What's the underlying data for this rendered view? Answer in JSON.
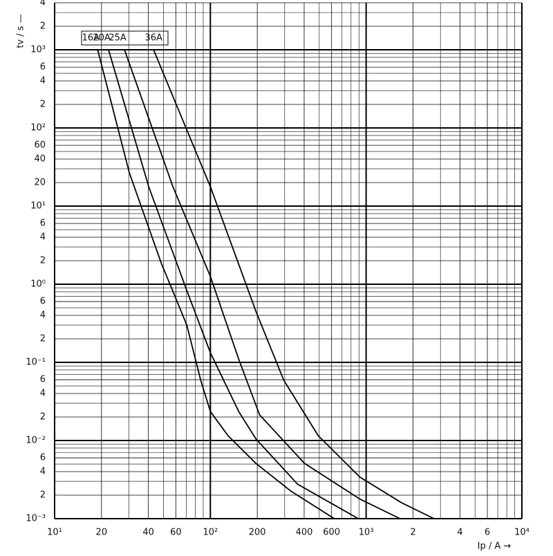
{
  "chart_data": {
    "type": "line",
    "x_label": "Ip / A →",
    "y_label": "tv / s —",
    "xscale": "log",
    "yscale": "log",
    "grid": true,
    "minor_grid": true,
    "xlim": [
      10,
      10000
    ],
    "ylim": [
      0.001,
      4000
    ],
    "xticks": [
      {
        "value": 10,
        "label": "10¹"
      },
      20,
      40,
      60,
      {
        "value": 100,
        "label": "10²"
      },
      200,
      400,
      600,
      {
        "value": 1000,
        "label": "10³"
      },
      {
        "value": 2000,
        "label": "2"
      },
      {
        "value": 4000,
        "label": "4"
      },
      {
        "value": 6000,
        "label": "6"
      },
      {
        "value": 10000,
        "label": "10⁴"
      }
    ],
    "yticks": [
      {
        "value": 4000,
        "label": "4"
      },
      {
        "value": 2000,
        "label": "2"
      },
      {
        "value": 1000,
        "label": "10³"
      },
      {
        "value": 600,
        "label": "6"
      },
      {
        "value": 400,
        "label": "4"
      },
      {
        "value": 200,
        "label": "2"
      },
      {
        "value": 100,
        "label": "10²"
      },
      60,
      40,
      20,
      {
        "value": 10,
        "label": "10¹"
      },
      6,
      4,
      2,
      {
        "value": 1,
        "label": "10⁰"
      },
      {
        "value": 0.6,
        "label": "6"
      },
      {
        "value": 0.4,
        "label": "4"
      },
      {
        "value": 0.2,
        "label": "2"
      },
      {
        "value": 0.1,
        "label": "10⁻¹"
      },
      {
        "value": 0.06,
        "label": "6"
      },
      {
        "value": 0.04,
        "label": "4"
      },
      {
        "value": 0.02,
        "label": "2"
      },
      {
        "value": 0.01,
        "label": "10⁻²"
      },
      {
        "value": 0.006,
        "label": "6"
      },
      {
        "value": 0.004,
        "label": "4"
      },
      {
        "value": 0.002,
        "label": "2"
      },
      {
        "value": 0.001,
        "label": "10⁻³"
      }
    ],
    "series": [
      {
        "name": "16A",
        "color": "#000000",
        "x": [
          18.9,
          30.2,
          48.3,
          70.6,
          86.7,
          100,
          130,
          196,
          328,
          625
        ],
        "values": [
          1000,
          26.6,
          1.88,
          0.3,
          0.059,
          0.0235,
          0.0115,
          0.0051,
          0.00226,
          0.001
        ]
      },
      {
        "name": "20A",
        "color": "#000000",
        "x": [
          22.2,
          40.2,
          70.6,
          100,
          152,
          196,
          363,
          891
        ],
        "values": [
          1000,
          17.7,
          0.83,
          0.133,
          0.0235,
          0.0105,
          0.00276,
          0.001
        ]
      },
      {
        "name": "25A",
        "color": "#000000",
        "x": [
          28.1,
          57.5,
          100,
          152,
          207,
          402,
          912,
          1652
        ],
        "values": [
          1000,
          17.7,
          1.26,
          0.11,
          0.0213,
          0.0051,
          0.00178,
          0.001
        ]
      },
      {
        "name": "36A",
        "color": "#000000",
        "x": [
          43.2,
          100,
          196,
          296,
          493,
          912,
          1687,
          2729
        ],
        "values": [
          1000,
          17.7,
          0.45,
          0.059,
          0.0115,
          0.0034,
          0.0016,
          0.001
        ]
      }
    ]
  }
}
